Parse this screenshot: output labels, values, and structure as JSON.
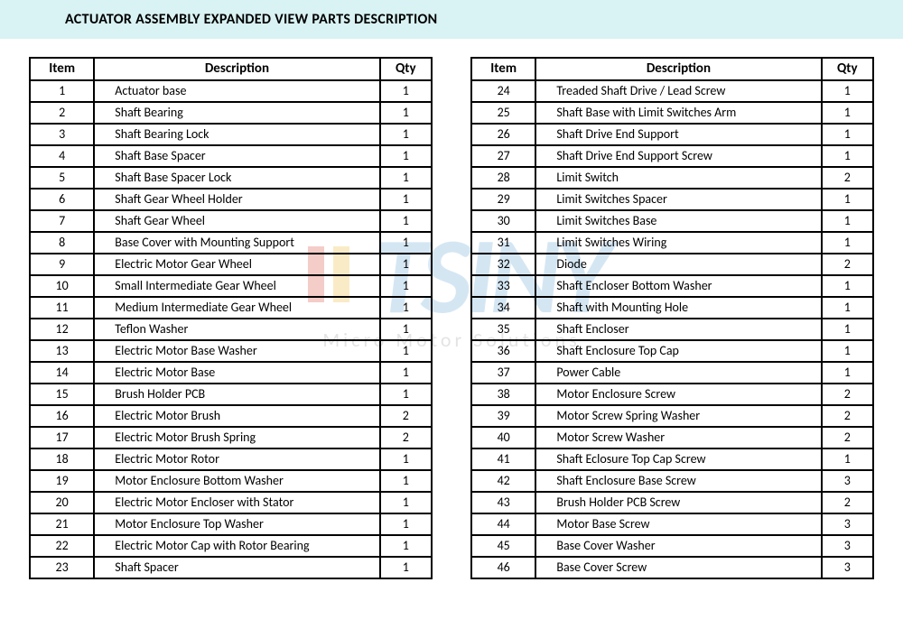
{
  "title": "ACTUATOR ASSEMBLY EXPANDED VIEW PARTS DESCRIPTION",
  "columns": {
    "item": "Item",
    "description": "Description",
    "qty": "Qty"
  },
  "watermark": {
    "text": "TSINY",
    "sub": "Micro Motor Solutions"
  },
  "table_left": [
    {
      "item": 1,
      "description": "Actuator base",
      "qty": 1
    },
    {
      "item": 2,
      "description": "Shaft Bearing",
      "qty": 1
    },
    {
      "item": 3,
      "description": "Shaft Bearing Lock",
      "qty": 1
    },
    {
      "item": 4,
      "description": "Shaft Base Spacer",
      "qty": 1
    },
    {
      "item": 5,
      "description": "Shaft Base Spacer Lock",
      "qty": 1
    },
    {
      "item": 6,
      "description": "Shaft Gear Wheel Holder",
      "qty": 1
    },
    {
      "item": 7,
      "description": "Shaft Gear Wheel",
      "qty": 1
    },
    {
      "item": 8,
      "description": "Base Cover with Mounting Support",
      "qty": 1
    },
    {
      "item": 9,
      "description": "Electric Motor Gear Wheel",
      "qty": 1
    },
    {
      "item": 10,
      "description": "Small Intermediate Gear Wheel",
      "qty": 1
    },
    {
      "item": 11,
      "description": "Medium Intermediate Gear Wheel",
      "qty": 1
    },
    {
      "item": 12,
      "description": "Teflon Washer",
      "qty": 1
    },
    {
      "item": 13,
      "description": "Electric Motor Base Washer",
      "qty": 1
    },
    {
      "item": 14,
      "description": "Electric Motor Base",
      "qty": 1
    },
    {
      "item": 15,
      "description": "Brush Holder PCB",
      "qty": 1
    },
    {
      "item": 16,
      "description": "Electric Motor Brush",
      "qty": 2
    },
    {
      "item": 17,
      "description": "Electric Motor Brush Spring",
      "qty": 2
    },
    {
      "item": 18,
      "description": "Electric Motor Rotor",
      "qty": 1
    },
    {
      "item": 19,
      "description": "Motor Enclosure Bottom Washer",
      "qty": 1
    },
    {
      "item": 20,
      "description": "Electric Motor Encloser with Stator",
      "qty": 1
    },
    {
      "item": 21,
      "description": "Motor Enclosure Top Washer",
      "qty": 1
    },
    {
      "item": 22,
      "description": "Electric Motor Cap with Rotor Bearing",
      "qty": 1
    },
    {
      "item": 23,
      "description": "Shaft Spacer",
      "qty": 1
    }
  ],
  "table_right": [
    {
      "item": 24,
      "description": "Treaded Shaft Drive / Lead Screw",
      "qty": 1
    },
    {
      "item": 25,
      "description": "Shaft Base with Limit Switches Arm",
      "qty": 1
    },
    {
      "item": 26,
      "description": "Shaft Drive End Support",
      "qty": 1
    },
    {
      "item": 27,
      "description": "Shaft Drive End Support Screw",
      "qty": 1
    },
    {
      "item": 28,
      "description": "Limit Switch",
      "qty": 2
    },
    {
      "item": 29,
      "description": "Limit Switches Spacer",
      "qty": 1
    },
    {
      "item": 30,
      "description": "Limit Switches Base",
      "qty": 1
    },
    {
      "item": 31,
      "description": "Limit Switches Wiring",
      "qty": 1
    },
    {
      "item": 32,
      "description": "Diode",
      "qty": 2
    },
    {
      "item": 33,
      "description": "Shaft Encloser Bottom Washer",
      "qty": 1
    },
    {
      "item": 34,
      "description": "Shaft with Mounting Hole",
      "qty": 1
    },
    {
      "item": 35,
      "description": "Shaft Encloser",
      "qty": 1
    },
    {
      "item": 36,
      "description": "Shaft Enclosure Top Cap",
      "qty": 1
    },
    {
      "item": 37,
      "description": "Power Cable",
      "qty": 1
    },
    {
      "item": 38,
      "description": "Motor Enclosure Screw",
      "qty": 2
    },
    {
      "item": 39,
      "description": "Motor Screw Spring Washer",
      "qty": 2
    },
    {
      "item": 40,
      "description": "Motor Screw Washer",
      "qty": 2
    },
    {
      "item": 41,
      "description": "Shaft Eclosure Top Cap Screw",
      "qty": 1
    },
    {
      "item": 42,
      "description": "Shaft Enclosure Base Screw",
      "qty": 3
    },
    {
      "item": 43,
      "description": "Brush Holder PCB Screw",
      "qty": 2
    },
    {
      "item": 44,
      "description": "Motor Base Screw",
      "qty": 3
    },
    {
      "item": 45,
      "description": "Base Cover Washer",
      "qty": 3
    },
    {
      "item": 46,
      "description": "Base Cover Screw",
      "qty": 3
    }
  ]
}
